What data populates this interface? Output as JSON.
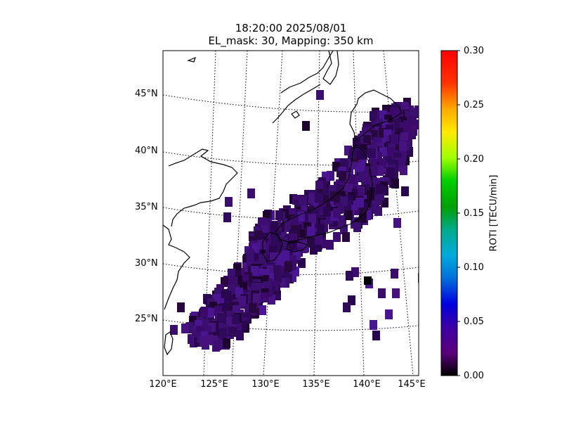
{
  "title": {
    "line1": "18:20:00 2025/08/01",
    "line2": "EL_mask: 30, Mapping: 350 km"
  },
  "map": {
    "region": "Japan and surrounding seas",
    "projection": "conic",
    "graticule": "dotted",
    "lat_labels": [
      "45°N",
      "40°N",
      "35°N",
      "30°N",
      "25°N"
    ],
    "lon_labels": [
      "120°E",
      "125°E",
      "130°E",
      "135°E",
      "140°E",
      "145°E"
    ],
    "extent": {
      "lon": [
        120,
        145
      ],
      "lat": [
        20,
        49
      ]
    },
    "coastline_color": "#000000"
  },
  "colorbar": {
    "label": "ROTI [TECU/min]",
    "ticks": [
      "0.00",
      "0.05",
      "0.10",
      "0.15",
      "0.20",
      "0.25",
      "0.30"
    ],
    "range": [
      0,
      0.3
    ],
    "colormap": "nipy_spectral"
  },
  "chart_data": {
    "type": "heatmap",
    "variable": "ROTI",
    "units": "TECU/min",
    "typical_range": [
      0.0,
      0.05
    ],
    "dominant_color": "#3a0f6e"
  }
}
